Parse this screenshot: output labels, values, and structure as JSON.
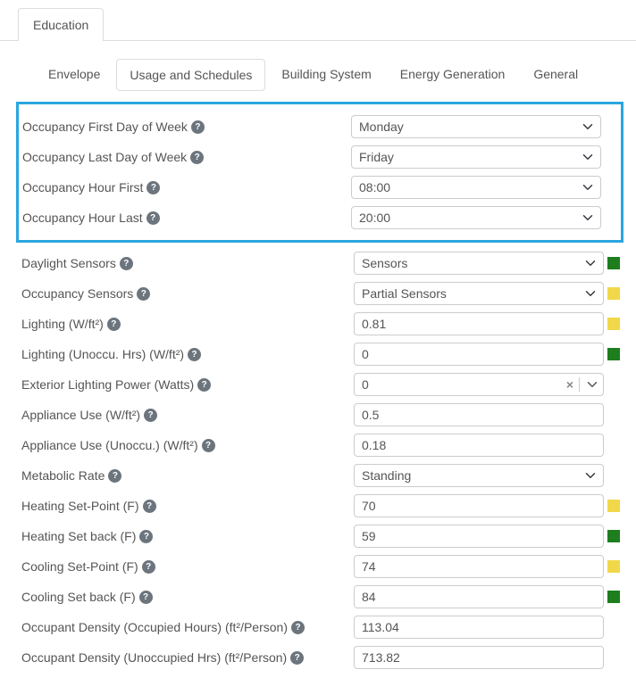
{
  "topTabs": {
    "education": "Education"
  },
  "subTabs": {
    "envelope": "Envelope",
    "usage": "Usage and Schedules",
    "building": "Building System",
    "energy": "Energy Generation",
    "general": "General"
  },
  "highlighted": [
    {
      "id": "occ-first-day",
      "label": "Occupancy First Day of Week",
      "type": "select",
      "value": "Monday"
    },
    {
      "id": "occ-last-day",
      "label": "Occupancy Last Day of Week",
      "type": "select",
      "value": "Friday"
    },
    {
      "id": "occ-hour-first",
      "label": "Occupancy Hour First",
      "type": "select",
      "value": "08:00"
    },
    {
      "id": "occ-hour-last",
      "label": "Occupancy Hour Last",
      "type": "select",
      "value": "20:00"
    }
  ],
  "rows": [
    {
      "id": "daylight-sensors",
      "label": "Daylight Sensors",
      "type": "select",
      "value": "Sensors",
      "status": "green"
    },
    {
      "id": "occupancy-sensors",
      "label": "Occupancy Sensors",
      "type": "select",
      "value": "Partial Sensors",
      "status": "yellow"
    },
    {
      "id": "lighting-wft2",
      "label": "Lighting (W/ft²)",
      "type": "text",
      "value": "0.81",
      "status": "yellow"
    },
    {
      "id": "lighting-unoccu",
      "label": "Lighting (Unoccu. Hrs) (W/ft²)",
      "type": "text",
      "value": "0",
      "status": "green"
    },
    {
      "id": "ext-lighting-power",
      "label": "Exterior Lighting Power (Watts)",
      "type": "combo",
      "value": "0"
    },
    {
      "id": "appliance-use",
      "label": "Appliance Use (W/ft²)",
      "type": "text",
      "value": "0.5"
    },
    {
      "id": "appliance-use-unoccu",
      "label": "Appliance Use (Unoccu.) (W/ft²)",
      "type": "text",
      "value": "0.18"
    },
    {
      "id": "metabolic-rate",
      "label": "Metabolic Rate",
      "type": "select",
      "value": "Standing"
    },
    {
      "id": "heating-setpoint",
      "label": "Heating Set-Point (F)",
      "type": "text",
      "value": "70",
      "status": "yellow"
    },
    {
      "id": "heating-setback",
      "label": "Heating Set back (F)",
      "type": "text",
      "value": "59",
      "status": "green"
    },
    {
      "id": "cooling-setpoint",
      "label": "Cooling Set-Point (F)",
      "type": "text",
      "value": "74",
      "status": "yellow"
    },
    {
      "id": "cooling-setback",
      "label": "Cooling Set back (F)",
      "type": "text",
      "value": "84",
      "status": "green"
    },
    {
      "id": "occ-density-occ",
      "label": "Occupant Density (Occupied Hours) (ft²/Person)",
      "type": "text",
      "value": "113.04"
    },
    {
      "id": "occ-density-unocc",
      "label": "Occupant Density (Unoccupied Hrs) (ft²/Person)",
      "type": "text",
      "value": "713.82"
    }
  ],
  "colors": {
    "green": "#1e7e1e",
    "yellow": "#f1d84a",
    "highlightBorder": "#2aa6e0"
  }
}
